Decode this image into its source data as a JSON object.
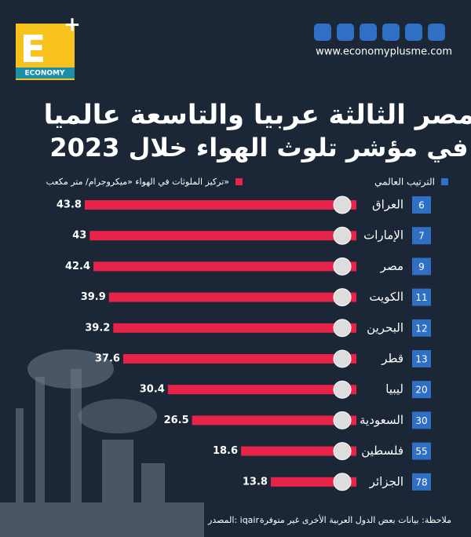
{
  "header": {
    "logo": "ECONOMY",
    "website": "www.economyplusme.com"
  },
  "chart_data": {
    "type": "bar",
    "title": "مصر الثالثة عربيا والتاسعة عالميا",
    "subtitle": "في مؤشر تلوث الهواء خلال 2023",
    "rank_legend": "الترتيب العالمي",
    "rank_color": "#2f6fc4",
    "categories": [
      "العراق",
      "الإمارات",
      "مصر",
      "الكويت",
      "البحرين",
      "قطر",
      "ليبيا",
      "السعودية",
      "فلسطين",
      "الجزائر"
    ],
    "ranks": [
      6,
      7,
      9,
      11,
      12,
      13,
      20,
      30,
      55,
      78
    ],
    "series": [
      {
        "name": "تركيز الملوثات في الهواء «ميكروجرام/ متر مكعب»",
        "color": "#e8234a",
        "values": [
          43.8,
          43,
          42.4,
          39.9,
          39.2,
          37.6,
          30.4,
          26.5,
          18.6,
          13.8
        ]
      }
    ],
    "note": "ملاحظة: بيانات بعض الدول العربية الأخرى غير متوفرة",
    "source": "المصدر: iqair"
  }
}
